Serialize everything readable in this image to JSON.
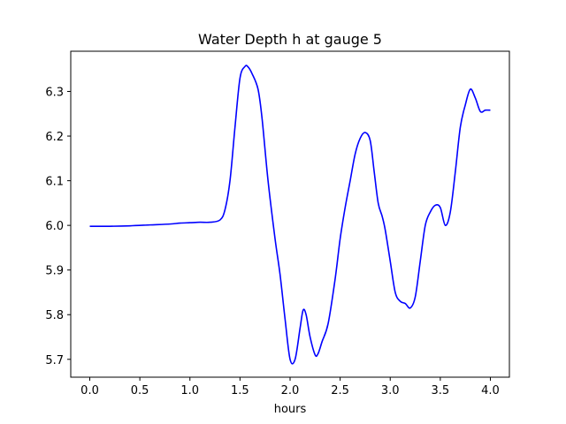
{
  "chart_data": {
    "type": "line",
    "title": "Water Depth h at gauge 5",
    "xlabel": "hours",
    "ylabel": "",
    "xlim": [
      -0.19,
      4.19
    ],
    "ylim": [
      5.66,
      6.39
    ],
    "xticks": [
      0.0,
      0.5,
      1.0,
      1.5,
      2.0,
      2.5,
      3.0,
      3.5,
      4.0
    ],
    "xtick_labels": [
      "0.0",
      "0.5",
      "1.0",
      "1.5",
      "2.0",
      "2.5",
      "3.0",
      "3.5",
      "4.0"
    ],
    "yticks": [
      5.7,
      5.8,
      5.9,
      6.0,
      6.1,
      6.2,
      6.3
    ],
    "ytick_labels": [
      "5.7",
      "5.8",
      "5.9",
      "6.0",
      "6.1",
      "6.2",
      "6.3"
    ],
    "grid": false,
    "series": [
      {
        "color": "#0000ff",
        "x": [
          0.0,
          0.2,
          0.4,
          0.6,
          0.8,
          0.9,
          1.0,
          1.1,
          1.2,
          1.3,
          1.35,
          1.4,
          1.45,
          1.5,
          1.55,
          1.58,
          1.62,
          1.68,
          1.72,
          1.78,
          1.85,
          1.9,
          1.95,
          2.0,
          2.05,
          2.1,
          2.13,
          2.16,
          2.2,
          2.25,
          2.28,
          2.32,
          2.38,
          2.45,
          2.5,
          2.55,
          2.6,
          2.65,
          2.7,
          2.75,
          2.8,
          2.84,
          2.88,
          2.92,
          2.95,
          3.0,
          3.05,
          3.1,
          3.15,
          3.2,
          3.25,
          3.3,
          3.35,
          3.4,
          3.45,
          3.5,
          3.55,
          3.6,
          3.65,
          3.7,
          3.75,
          3.8,
          3.85,
          3.9,
          3.95,
          4.0
        ],
        "y": [
          5.998,
          5.998,
          5.999,
          6.001,
          6.003,
          6.005,
          6.006,
          6.007,
          6.007,
          6.012,
          6.035,
          6.1,
          6.22,
          6.33,
          6.356,
          6.355,
          6.34,
          6.305,
          6.24,
          6.1,
          5.97,
          5.89,
          5.79,
          5.7,
          5.7,
          5.77,
          5.81,
          5.8,
          5.75,
          5.71,
          5.713,
          5.74,
          5.78,
          5.88,
          5.97,
          6.04,
          6.1,
          6.16,
          6.195,
          6.208,
          6.19,
          6.12,
          6.05,
          6.02,
          5.99,
          5.92,
          5.85,
          5.83,
          5.825,
          5.815,
          5.84,
          5.92,
          6.0,
          6.03,
          6.045,
          6.04,
          6.0,
          6.03,
          6.12,
          6.22,
          6.27,
          6.305,
          6.285,
          6.255,
          6.258,
          6.258
        ]
      }
    ]
  }
}
